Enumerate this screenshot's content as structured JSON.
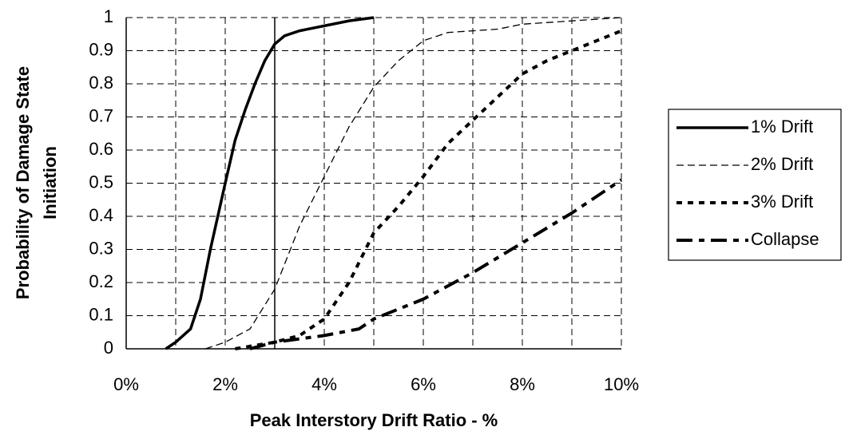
{
  "chart_data": {
    "type": "line",
    "x_label": "Peak Interstory Drift Ratio - %",
    "y_label": [
      "Probability of Damage State",
      "Initiation"
    ],
    "xlim": [
      0,
      10
    ],
    "xticks": [
      {
        "value": 0,
        "label": "0%"
      },
      {
        "value": 2,
        "label": "2%"
      },
      {
        "value": 4,
        "label": "4%"
      },
      {
        "value": 6,
        "label": "6%"
      },
      {
        "value": 8,
        "label": "8%"
      },
      {
        "value": 10,
        "label": "10%"
      }
    ],
    "ylim": [
      0,
      1
    ],
    "yticks": [
      0,
      0.1,
      0.2,
      0.3,
      0.4,
      0.5,
      0.6,
      0.7,
      0.8,
      0.9,
      1
    ],
    "grid": true,
    "reference_line_x": 3,
    "legend": "right",
    "series": [
      {
        "name": "1% Drift",
        "color": "#000000",
        "dash": "solid",
        "x": [
          0.8,
          1,
          1.3,
          1.5,
          1.7,
          2,
          2.2,
          2.4,
          2.6,
          2.8,
          3,
          3.2,
          3.5,
          4,
          4.5,
          5
        ],
        "values": [
          0,
          0.02,
          0.06,
          0.15,
          0.3,
          0.5,
          0.63,
          0.72,
          0.8,
          0.87,
          0.92,
          0.945,
          0.96,
          0.975,
          0.99,
          1
        ]
      },
      {
        "name": "2% Drift",
        "color": "#000000",
        "dash": "dashed",
        "x": [
          1.6,
          2,
          2.5,
          3,
          3.5,
          4,
          4.5,
          5,
          5.5,
          6,
          6.5,
          7,
          7.5,
          8,
          9,
          10
        ],
        "values": [
          0,
          0.02,
          0.06,
          0.18,
          0.37,
          0.52,
          0.67,
          0.79,
          0.87,
          0.93,
          0.955,
          0.96,
          0.965,
          0.98,
          0.99,
          1
        ]
      },
      {
        "name": "3% Drift",
        "color": "#000000",
        "dash": "dotted",
        "x": [
          2.2,
          3,
          3.5,
          4,
          4.5,
          5,
          5.5,
          6,
          6.5,
          7,
          7.5,
          8,
          8.5,
          9,
          9.5,
          10
        ],
        "values": [
          0,
          0.02,
          0.04,
          0.09,
          0.2,
          0.35,
          0.43,
          0.52,
          0.62,
          0.69,
          0.76,
          0.83,
          0.87,
          0.9,
          0.93,
          0.96
        ]
      },
      {
        "name": "Collapse",
        "color": "#000000",
        "dash": "dashdot",
        "x": [
          2.5,
          3,
          4,
          4.7,
          5,
          6,
          7,
          8,
          9,
          10
        ],
        "values": [
          0,
          0.02,
          0.04,
          0.06,
          0.09,
          0.15,
          0.23,
          0.32,
          0.41,
          0.51
        ]
      }
    ]
  }
}
